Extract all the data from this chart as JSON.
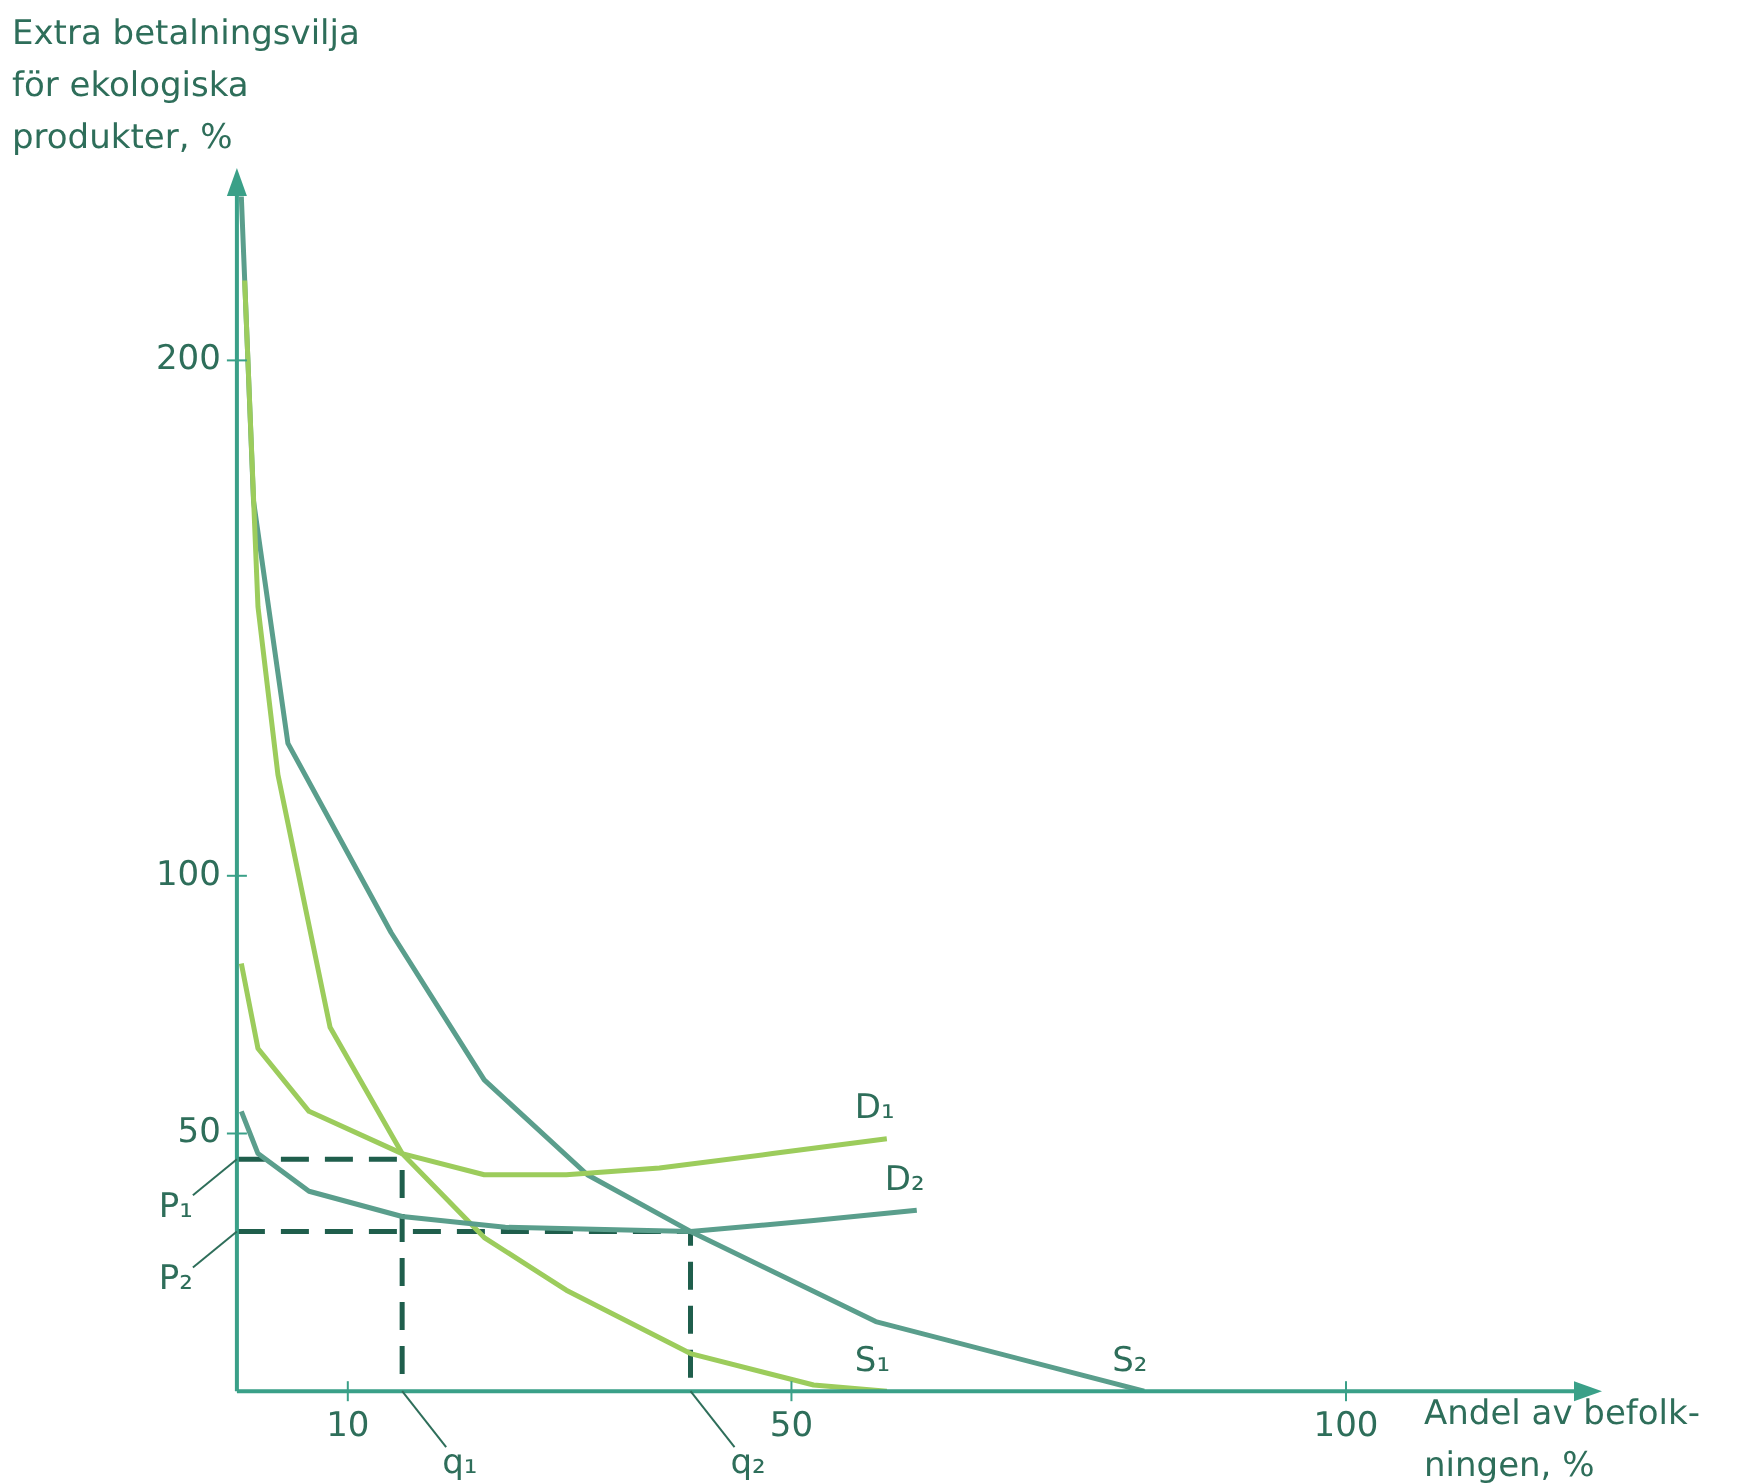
{
  "chart_data": {
    "type": "line",
    "ylabel": "Extra betalningsvilja\nför ekologiska\nprodukter, %",
    "xlabel": "Andel av befolk-\nningen, %",
    "xlim": [
      0,
      122
    ],
    "ylim": [
      0,
      235
    ],
    "xticks": [
      10,
      50,
      100
    ],
    "yticks": [
      50,
      100,
      200
    ],
    "grid": false,
    "legend": false,
    "marker": "none",
    "series": [
      {
        "name": "D₁",
        "color": "#9ccc5c",
        "x": [
          0.4,
          1.9,
          6.5,
          14.9,
          22.3,
          29.7,
          38.1,
          48.3,
          58.6
        ],
        "values": [
          83,
          66.5,
          54.3,
          46.1,
          42,
          42,
          43.3,
          46.1,
          49
        ]
      },
      {
        "name": "D₂",
        "color": "#5a9e8c",
        "x": [
          0.4,
          1.9,
          6.5,
          14.9,
          24.2,
          40.9,
          52,
          61.3
        ],
        "values": [
          54.3,
          46.1,
          38.8,
          33.9,
          31.8,
          31,
          33.1,
          35.1
        ]
      },
      {
        "name": "S₁",
        "color": "#9ccc5c",
        "x": [
          0.7,
          1.9,
          3.7,
          8.4,
          14.9,
          22.3,
          29.7,
          40.9,
          52,
          58.6
        ],
        "values": [
          215.5,
          152.2,
          119.6,
          70.6,
          46.1,
          29.8,
          19.6,
          7.3,
          1.2,
          0
        ]
      },
      {
        "name": "S₂",
        "color": "#5a9e8c",
        "x": [
          0.4,
          1.5,
          4.6,
          13.9,
          22.3,
          31.6,
          40.9,
          57.6,
          81.8
        ],
        "values": [
          231.8,
          172.7,
          125.7,
          89,
          60.4,
          42,
          31,
          13.5,
          0
        ]
      },
      {
        "color": "#1f5e4c",
        "line_style": "dashed",
        "x": [
          0,
          14.9,
          14.9
        ],
        "values": [
          45,
          45,
          0
        ]
      },
      {
        "color": "#1f5e4c",
        "line_style": "dashed",
        "x": [
          0,
          40.9,
          40.9
        ],
        "values": [
          31,
          31,
          0
        ]
      }
    ],
    "annotations": [
      {
        "text": "P₁",
        "x": 0,
        "y": 45
      },
      {
        "text": "P₂",
        "x": 0,
        "y": 31
      },
      {
        "text": "q₁",
        "x": 14.9,
        "y": 0
      },
      {
        "text": "q₂",
        "x": 40.9,
        "y": 0
      }
    ]
  }
}
